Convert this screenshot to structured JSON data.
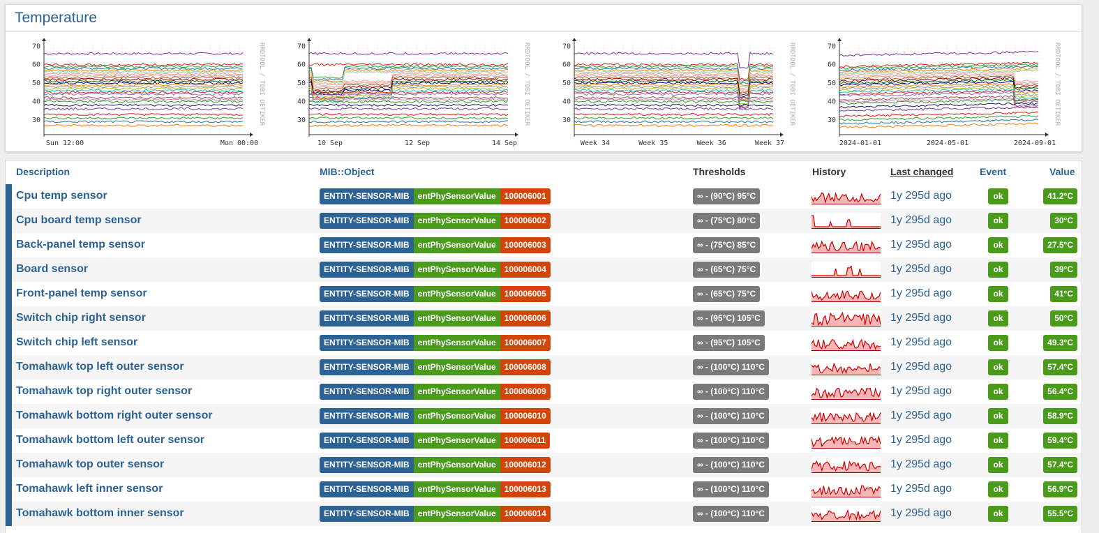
{
  "panel": {
    "title": "Temperature"
  },
  "graphs": [
    {
      "ticks_y": [
        "70",
        "60",
        "50",
        "40",
        "30"
      ],
      "ticks_x": [
        "Sun 12:00",
        "Mon 00:00"
      ],
      "watermark": "RRDTOOL / TOBI OETIKER"
    },
    {
      "ticks_y": [
        "70",
        "60",
        "50",
        "40",
        "30"
      ],
      "ticks_x": [
        "10 Sep",
        "12 Sep",
        "14 Sep"
      ],
      "watermark": "RRDTOOL / TOBI OETIKER"
    },
    {
      "ticks_y": [
        "70",
        "60",
        "50",
        "40",
        "30"
      ],
      "ticks_x": [
        "Week 34",
        "Week 35",
        "Week 36",
        "Week 37"
      ],
      "watermark": "RRDTOOL / TOBI OETIKER"
    },
    {
      "ticks_y": [
        "70",
        "60",
        "50",
        "40",
        "30"
      ],
      "ticks_x": [
        "2024-01-01",
        "2024-05-01",
        "2024-09-01"
      ],
      "watermark": "RRDTOOL / TOBI OETIKER"
    }
  ],
  "table": {
    "headers": {
      "description": "Description",
      "mib_object": "MIB::Object",
      "thresholds": "Thresholds",
      "history": "History",
      "last_changed": "Last changed",
      "event": "Event",
      "value": "Value"
    },
    "rows": [
      {
        "description": "Cpu temp sensor",
        "mib": "ENTITY-SENSOR-MIB",
        "object": "entPhySensorValue",
        "index": "100006001",
        "threshold": "∞ - (90°C) 95°C",
        "last_changed": "1y 295d ago",
        "event": "ok",
        "value": "41.2°C"
      },
      {
        "description": "Cpu board temp sensor",
        "mib": "ENTITY-SENSOR-MIB",
        "object": "entPhySensorValue",
        "index": "100006002",
        "threshold": "∞ - (75°C) 80°C",
        "last_changed": "1y 295d ago",
        "event": "ok",
        "value": "30°C"
      },
      {
        "description": "Back-panel temp sensor",
        "mib": "ENTITY-SENSOR-MIB",
        "object": "entPhySensorValue",
        "index": "100006003",
        "threshold": "∞ - (75°C) 85°C",
        "last_changed": "1y 295d ago",
        "event": "ok",
        "value": "27.5°C"
      },
      {
        "description": "Board sensor",
        "mib": "ENTITY-SENSOR-MIB",
        "object": "entPhySensorValue",
        "index": "100006004",
        "threshold": "∞ - (65°C) 75°C",
        "last_changed": "1y 295d ago",
        "event": "ok",
        "value": "39°C"
      },
      {
        "description": "Front-panel temp sensor",
        "mib": "ENTITY-SENSOR-MIB",
        "object": "entPhySensorValue",
        "index": "100006005",
        "threshold": "∞ - (65°C) 75°C",
        "last_changed": "1y 295d ago",
        "event": "ok",
        "value": "41°C"
      },
      {
        "description": "Switch chip right sensor",
        "mib": "ENTITY-SENSOR-MIB",
        "object": "entPhySensorValue",
        "index": "100006006",
        "threshold": "∞ - (95°C) 105°C",
        "last_changed": "1y 295d ago",
        "event": "ok",
        "value": "50°C"
      },
      {
        "description": "Switch chip left sensor",
        "mib": "ENTITY-SENSOR-MIB",
        "object": "entPhySensorValue",
        "index": "100006007",
        "threshold": "∞ - (95°C) 105°C",
        "last_changed": "1y 295d ago",
        "event": "ok",
        "value": "49.3°C"
      },
      {
        "description": "Tomahawk top left outer sensor",
        "mib": "ENTITY-SENSOR-MIB",
        "object": "entPhySensorValue",
        "index": "100006008",
        "threshold": "∞ - (100°C) 110°C",
        "last_changed": "1y 295d ago",
        "event": "ok",
        "value": "57.4°C"
      },
      {
        "description": "Tomahawk top right outer sensor",
        "mib": "ENTITY-SENSOR-MIB",
        "object": "entPhySensorValue",
        "index": "100006009",
        "threshold": "∞ - (100°C) 110°C",
        "last_changed": "1y 295d ago",
        "event": "ok",
        "value": "56.4°C"
      },
      {
        "description": "Tomahawk bottom right outer sensor",
        "mib": "ENTITY-SENSOR-MIB",
        "object": "entPhySensorValue",
        "index": "100006010",
        "threshold": "∞ - (100°C) 110°C",
        "last_changed": "1y 295d ago",
        "event": "ok",
        "value": "58.9°C"
      },
      {
        "description": "Tomahawk bottom left outer sensor",
        "mib": "ENTITY-SENSOR-MIB",
        "object": "entPhySensorValue",
        "index": "100006011",
        "threshold": "∞ - (100°C) 110°C",
        "last_changed": "1y 295d ago",
        "event": "ok",
        "value": "59.4°C"
      },
      {
        "description": "Tomahawk top outer sensor",
        "mib": "ENTITY-SENSOR-MIB",
        "object": "entPhySensorValue",
        "index": "100006012",
        "threshold": "∞ - (100°C) 110°C",
        "last_changed": "1y 295d ago",
        "event": "ok",
        "value": "57.4°C"
      },
      {
        "description": "Tomahawk left inner sensor",
        "mib": "ENTITY-SENSOR-MIB",
        "object": "entPhySensorValue",
        "index": "100006013",
        "threshold": "∞ - (100°C) 110°C",
        "last_changed": "1y 295d ago",
        "event": "ok",
        "value": "56.9°C"
      },
      {
        "description": "Tomahawk bottom inner sensor",
        "mib": "ENTITY-SENSOR-MIB",
        "object": "entPhySensorValue",
        "index": "100006014",
        "threshold": "∞ - (100°C) 110°C",
        "last_changed": "1y 295d ago",
        "event": "ok",
        "value": "55.5°C"
      }
    ]
  },
  "colors": {
    "accent": "#2c6294",
    "ok_green": "#4a9a1c",
    "index_orange": "#d2450a",
    "threshold_gray": "#7a7a7a",
    "sparkline": "#cc0000"
  }
}
